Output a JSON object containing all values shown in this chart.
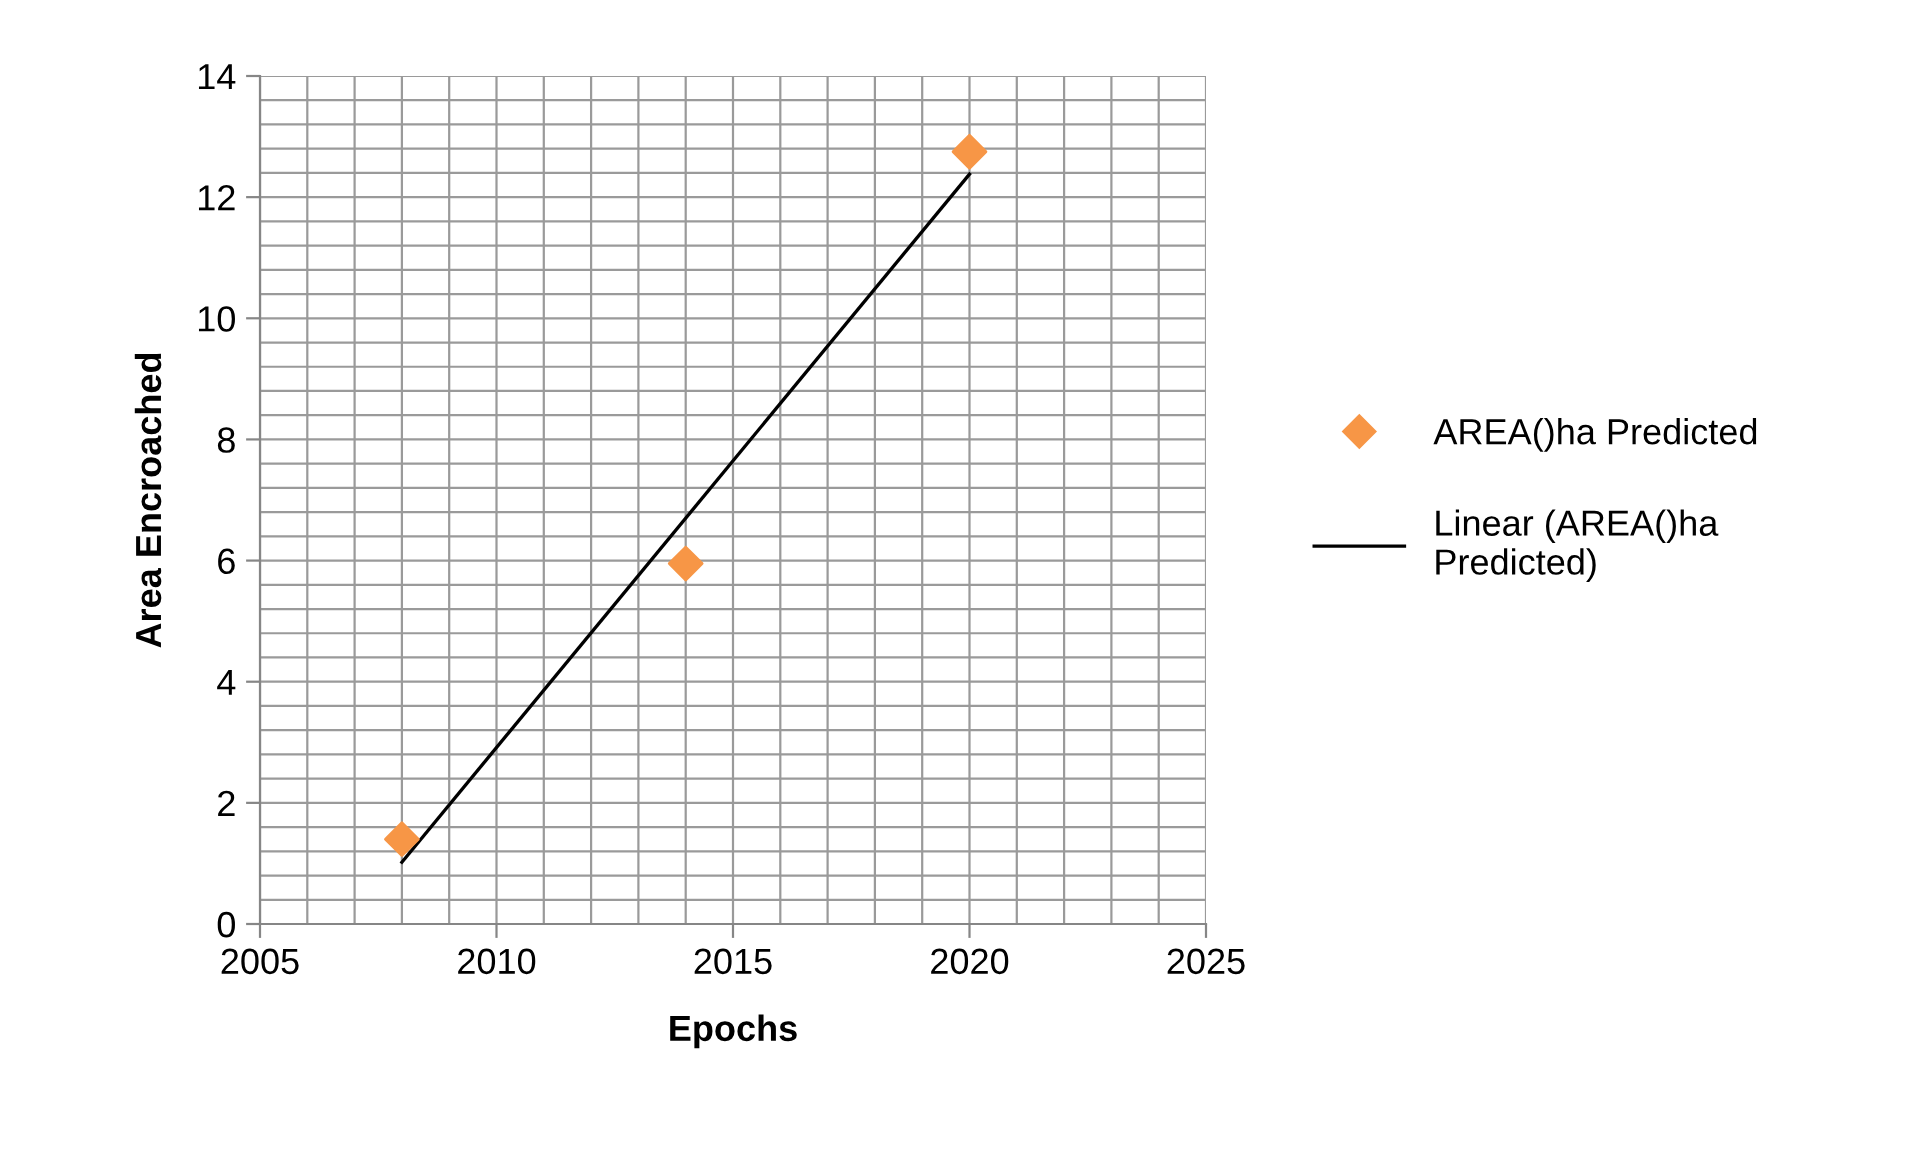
{
  "chart_data": {
    "type": "scatter",
    "xlabel": "Epochs",
    "ylabel": "Area Encroached",
    "series": [
      {
        "name": "AREA()ha Predicted",
        "color": "#f79646",
        "marker": "diamond",
        "x": [
          2008,
          2014,
          2020
        ],
        "values": [
          1.4,
          5.95,
          12.75
        ]
      },
      {
        "name": "Linear (AREA()ha Predicted)",
        "type": "line",
        "color": "#000000",
        "marker": "none",
        "line_style": "solid",
        "x": [
          2008,
          2020
        ],
        "values": [
          1.02,
          12.38
        ]
      }
    ],
    "xlim": [
      2005,
      2025
    ],
    "xticks": [
      2005,
      2010,
      2015,
      2020,
      2025
    ],
    "ylim": [
      0,
      14
    ],
    "yticks": [
      0,
      2,
      4,
      6,
      8,
      10,
      12,
      14
    ],
    "grid": true,
    "legend": "right"
  }
}
